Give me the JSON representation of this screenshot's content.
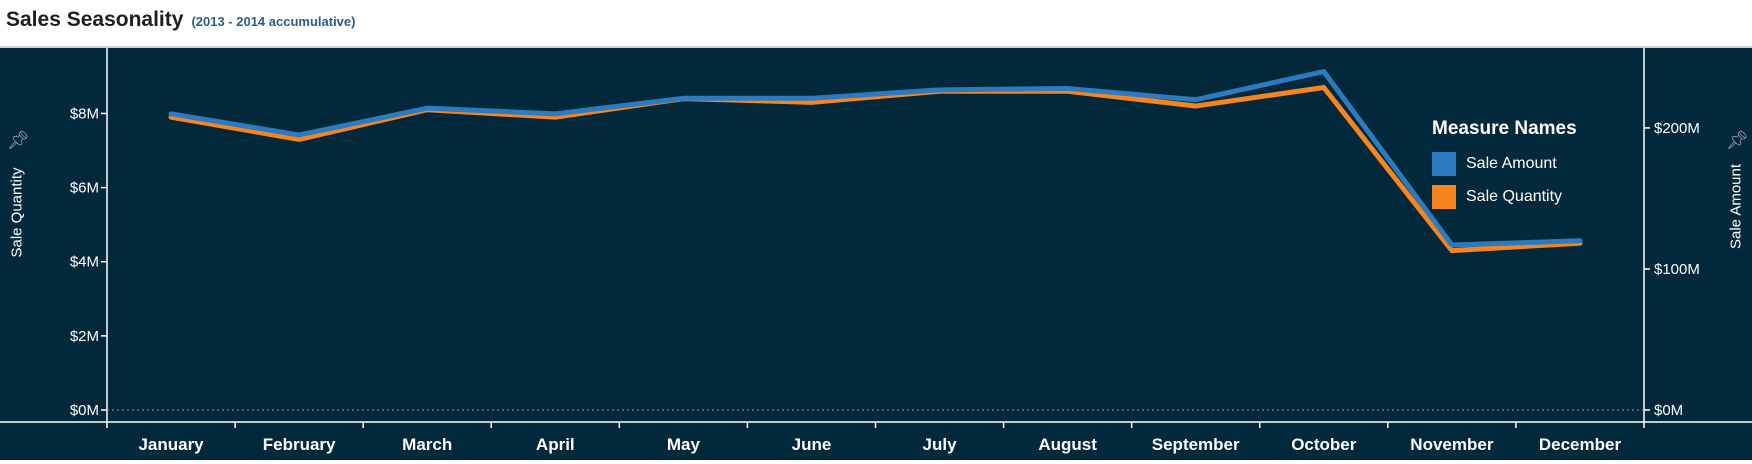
{
  "header": {
    "title": "Sales Seasonality",
    "subtitle": "(2013 - 2014 accumulative)"
  },
  "colors": {
    "background": "#02283c",
    "sale_amount": "#2d7bbf",
    "sale_quantity": "#f7851f",
    "axis": "#ffffff"
  },
  "chart_data": {
    "type": "line",
    "categories": [
      "January",
      "February",
      "March",
      "April",
      "May",
      "June",
      "July",
      "August",
      "September",
      "October",
      "November",
      "December"
    ],
    "series": [
      {
        "name": "Sale Amount",
        "axis": "right",
        "values": [
          210,
          195,
          214,
          210,
          221,
          221,
          227,
          228,
          220,
          240,
          117,
          120
        ]
      },
      {
        "name": "Sale Quantity",
        "axis": "left",
        "values": [
          7.9,
          7.3,
          8.1,
          7.9,
          8.4,
          8.3,
          8.6,
          8.6,
          8.2,
          8.7,
          4.3,
          4.5
        ]
      }
    ],
    "left_axis": {
      "label": "Sale Quantity",
      "ylim": [
        0,
        9.55
      ],
      "ticks": [
        {
          "value": 0,
          "label": "$0M"
        },
        {
          "value": 2,
          "label": "$2M"
        },
        {
          "value": 4,
          "label": "$4M"
        },
        {
          "value": 6,
          "label": "$6M"
        },
        {
          "value": 8,
          "label": "$8M"
        }
      ]
    },
    "right_axis": {
      "label": "Sale Amount",
      "ylim": [
        0,
        251
      ],
      "ticks": [
        {
          "value": 0,
          "label": "$0M"
        },
        {
          "value": 100,
          "label": "$100M"
        },
        {
          "value": 200,
          "label": "$200M"
        }
      ]
    },
    "legend": {
      "title": "Measure Names",
      "position": "top-right",
      "items": [
        {
          "label": "Sale Amount",
          "color": "#2d7bbf"
        },
        {
          "label": "Sale Quantity",
          "color": "#f7851f"
        }
      ]
    },
    "grid": false
  }
}
